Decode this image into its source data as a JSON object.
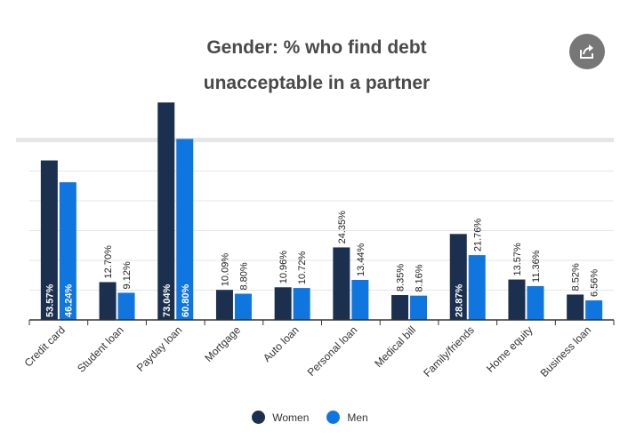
{
  "title_line1": "Gender: % who find debt",
  "title_line2": "unacceptable in a partner",
  "share_icon": "share-icon",
  "colors": {
    "women": "#1b2f4f",
    "men": "#0f76e0",
    "axis": "#333333",
    "grid": "#e6e6e6"
  },
  "chart_data": {
    "type": "bar",
    "categories": [
      "Credit card",
      "Student loan",
      "Payday loan",
      "Mortgage",
      "Auto loan",
      "Personal loan",
      "Medical bill",
      "Family/friends",
      "Home equity",
      "Business loan"
    ],
    "series": [
      {
        "name": "Women",
        "values": [
          53.57,
          12.7,
          73.04,
          10.09,
          10.96,
          24.35,
          8.35,
          28.87,
          13.57,
          8.52
        ],
        "labels": [
          "53.57%",
          "12.70%",
          "73.04%",
          "10.09%",
          "10.96%",
          "24.35%",
          "8.35%",
          "28.87%",
          "13.57%",
          "8.52%"
        ]
      },
      {
        "name": "Men",
        "values": [
          46.24,
          9.12,
          60.8,
          8.8,
          10.72,
          13.44,
          8.16,
          21.76,
          11.36,
          6.56
        ],
        "labels": [
          "46.24%",
          "9.12%",
          "60.80%",
          "8.80%",
          "10.72%",
          "13.44%",
          "8.16%",
          "21.76%",
          "11.36%",
          "6.56%"
        ]
      }
    ],
    "ylim": [
      0,
      100
    ],
    "grid": true,
    "legend": "bottom-center"
  }
}
